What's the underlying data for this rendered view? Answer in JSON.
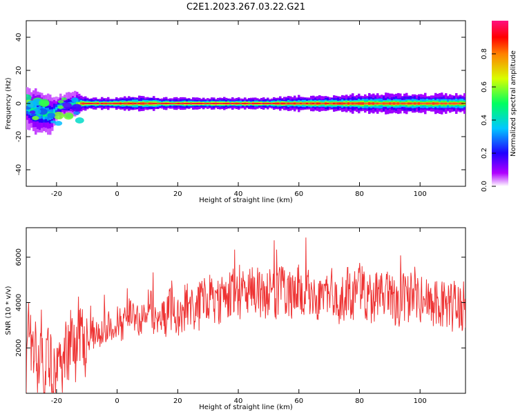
{
  "title": "C2E1.2023.267.03.22.G21",
  "chart_data": [
    {
      "type": "heatmap",
      "xlabel": "Height of straight line (km)",
      "ylabel": "Frequency (Hz)",
      "xlim": [
        -30,
        115
      ],
      "ylim": [
        -50,
        50
      ],
      "x_ticks": [
        -20,
        0,
        20,
        40,
        60,
        80,
        100
      ],
      "y_ticks": [
        -40,
        -20,
        0,
        20,
        40
      ],
      "colorbar": {
        "label": "Normalized spectral amplitude",
        "range": [
          0,
          1
        ],
        "ticks": [
          "0.0",
          "0.2",
          "0.4",
          "0.6",
          "0.8"
        ],
        "colormap": [
          "#ffffff",
          "#b000ff",
          "#2000ff",
          "#00c8ff",
          "#00ff60",
          "#d8ff00",
          "#ff8000",
          "#ff0000",
          "#ff1080"
        ]
      },
      "ridge": {
        "x": [
          -30,
          -27,
          -24,
          -22,
          -20,
          -17,
          -14,
          -12,
          -10,
          -5,
          0,
          5,
          10,
          15,
          20,
          30,
          40,
          50,
          60,
          70,
          80,
          90,
          100,
          110,
          115
        ],
        "freq": [
          -3,
          -5,
          -6,
          -7,
          -2,
          -1,
          0,
          0,
          0,
          0,
          0,
          0,
          0,
          0,
          0,
          0,
          0,
          0,
          0,
          0,
          0,
          0,
          0,
          0,
          0
        ],
        "spread": [
          5,
          6,
          6,
          5,
          3,
          3,
          3,
          2,
          1.5,
          1.5,
          1.5,
          2,
          2,
          1.5,
          1.5,
          1.5,
          1.5,
          1.5,
          2,
          2,
          2.5,
          2.5,
          2.5,
          2.5,
          2.5
        ],
        "amplitude": [
          0.45,
          0.5,
          0.5,
          0.45,
          0.4,
          0.45,
          0.5,
          0.85,
          0.95,
          0.95,
          0.95,
          0.9,
          0.85,
          0.95,
          0.95,
          0.95,
          0.95,
          0.95,
          0.9,
          0.9,
          0.85,
          0.85,
          0.85,
          0.8,
          0.8
        ]
      }
    },
    {
      "type": "line",
      "xlabel": "Height of straight line (km)",
      "ylabel": "SNR (10 * v/v)",
      "xlim": [
        -30,
        115
      ],
      "ylim": [
        0,
        7300
      ],
      "x_ticks": [
        -20,
        0,
        20,
        40,
        60,
        80,
        100
      ],
      "y_ticks": [
        2000,
        4000,
        6000
      ],
      "series": [
        {
          "color": "#ee3333",
          "x": [
            -30,
            -29,
            -28,
            -27,
            -26,
            -25,
            -24,
            -23,
            -22,
            -21,
            -20,
            -19,
            -18,
            -17,
            -16,
            -15,
            -14,
            -13,
            -12,
            -11,
            -10,
            -8,
            -6,
            -4,
            -2,
            0,
            2,
            4,
            6,
            8,
            10,
            12,
            14,
            16,
            18,
            20,
            22,
            24,
            26,
            28,
            30,
            32,
            34,
            36,
            38,
            40,
            42,
            44,
            46,
            48,
            50,
            52,
            54,
            56,
            58,
            60,
            62,
            64,
            66,
            68,
            70,
            72,
            74,
            76,
            78,
            80,
            82,
            84,
            86,
            88,
            90,
            92,
            94,
            96,
            98,
            100,
            102,
            104,
            106,
            108,
            110,
            112,
            114,
            115
          ],
          "values": [
            1400,
            2800,
            1000,
            2200,
            600,
            1800,
            400,
            2000,
            1200,
            700,
            1600,
            1900,
            900,
            2300,
            1500,
            2600,
            1300,
            3100,
            2700,
            1800,
            2500,
            2700,
            2400,
            2900,
            3000,
            3200,
            2900,
            3600,
            3100,
            3300,
            3800,
            3200,
            3700,
            3500,
            3900,
            3400,
            3700,
            3900,
            3600,
            4100,
            4200,
            4400,
            4000,
            4300,
            4500,
            4200,
            4600,
            4400,
            4700,
            4300,
            4500,
            4200,
            4700,
            4400,
            4300,
            4600,
            4200,
            4500,
            4100,
            4400,
            4600,
            4300,
            4000,
            4500,
            4200,
            4700,
            4300,
            4100,
            4400,
            4200,
            4500,
            3900,
            4300,
            4100,
            4600,
            4000,
            4200,
            3800,
            4100,
            3900,
            3700,
            4000,
            3800,
            3900
          ]
        }
      ]
    }
  ]
}
